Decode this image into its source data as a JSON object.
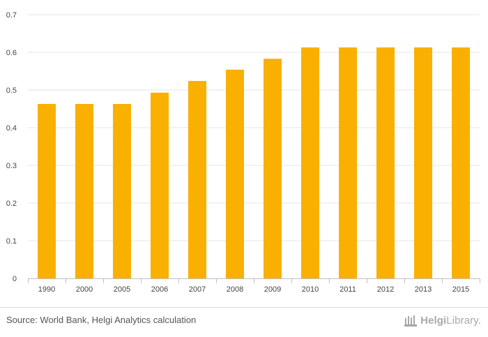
{
  "chart_data": {
    "type": "bar",
    "categories": [
      "1990",
      "2000",
      "2005",
      "2006",
      "2007",
      "2008",
      "2009",
      "2010",
      "2011",
      "2012",
      "2013",
      "2015"
    ],
    "values": [
      0.463,
      0.463,
      0.463,
      0.493,
      0.524,
      0.554,
      0.583,
      0.613,
      0.613,
      0.613,
      0.613,
      0.613
    ],
    "ylim": [
      0,
      0.7
    ],
    "yticks": [
      "0",
      "0.1",
      "0.2",
      "0.3",
      "0.4",
      "0.5",
      "0.6",
      "0.7"
    ],
    "bar_color": "#f9b000",
    "grid": true
  },
  "footer": {
    "source": "Source: World Bank, Helgi Analytics calculation",
    "logo_bold": "Helgi",
    "logo_light": "Library."
  },
  "colors": {
    "gridline": "#e6e6e6",
    "axis": "#c0c0c0",
    "logo": "#a8a8a8"
  },
  "icons": {
    "logo": "library-building-icon"
  }
}
